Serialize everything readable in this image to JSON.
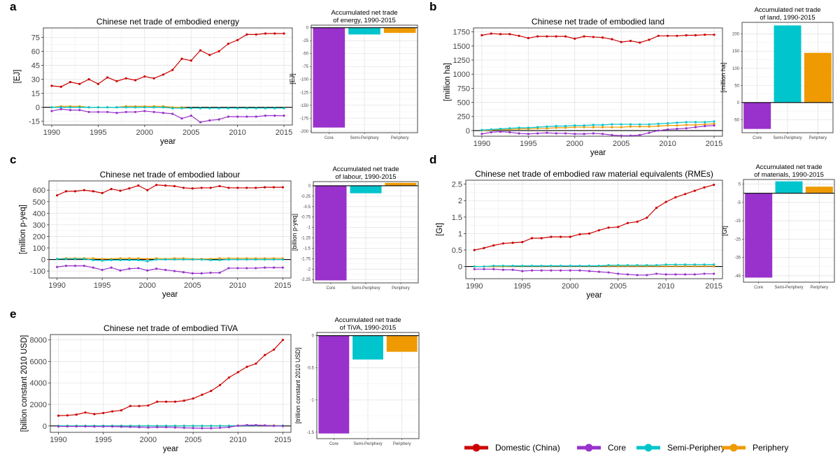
{
  "legend": [
    {
      "key": "domestic",
      "label": "Domestic (China)",
      "color": "#cc0000"
    },
    {
      "key": "core",
      "label": "Core",
      "color": "#9932cc"
    },
    {
      "key": "semi",
      "label": "Semi-Periphery",
      "color": "#00c5cd"
    },
    {
      "key": "peri",
      "label": "Periphery",
      "color": "#ee9a00"
    }
  ],
  "chart_data": [
    {
      "panel": "a",
      "type": "line",
      "title": "Chinese net trade of embodied energy",
      "xlabel": "year",
      "ylabel": "[EJ]",
      "xlim": [
        1989.1,
        2015.9
      ],
      "ylim": [
        -19,
        85
      ],
      "xticks": [
        1990,
        1995,
        2000,
        2005,
        2010,
        2015
      ],
      "yticks": [
        -15,
        0,
        15,
        30,
        45,
        60,
        75
      ],
      "x": [
        1990,
        1991,
        1992,
        1993,
        1994,
        1995,
        1996,
        1997,
        1998,
        1999,
        2000,
        2001,
        2002,
        2003,
        2004,
        2005,
        2006,
        2007,
        2008,
        2009,
        2010,
        2011,
        2012,
        2013,
        2014,
        2015
      ],
      "series": [
        {
          "key": "domestic",
          "values": [
            23,
            22,
            27,
            25,
            30,
            25,
            32,
            28,
            31,
            29,
            33,
            31,
            35,
            40,
            52,
            50,
            61,
            56,
            60,
            68,
            72,
            78,
            78,
            79,
            79,
            79
          ]
        },
        {
          "key": "core",
          "values": [
            -4,
            -2,
            -3,
            -3,
            -5,
            -5,
            -5,
            -6,
            -5,
            -5,
            -4,
            -5,
            -6,
            -7,
            -12,
            -9,
            -16,
            -14,
            -13,
            -10,
            -10,
            -10,
            -10,
            -9,
            -9,
            -9
          ]
        },
        {
          "key": "semi",
          "values": [
            0,
            0,
            0,
            0,
            0,
            0,
            0,
            0,
            0,
            0,
            0,
            0,
            0,
            -1,
            -1,
            -1,
            -1,
            -1,
            -1,
            -1,
            -1,
            -1,
            -1,
            -1,
            -1,
            -1
          ]
        },
        {
          "key": "peri",
          "values": [
            0,
            1,
            1,
            1,
            0,
            0,
            0,
            0,
            1,
            1,
            1,
            1,
            1,
            0,
            0,
            -1,
            -1,
            -1,
            -1,
            -1,
            -1,
            -1,
            -1,
            -1,
            -1,
            -1
          ]
        }
      ]
    },
    {
      "panel": "a-acc",
      "type": "bar",
      "title": "Accumulated net trade of energy, 1990-2015",
      "ylabel": "[EJ]",
      "categories": [
        "Core",
        "Semi-Periphery",
        "Periphery"
      ],
      "values": [
        -193,
        -13,
        -10
      ],
      "ylim": [
        -203,
        5
      ],
      "yticks": [
        -200,
        -175,
        -150,
        -125,
        -100,
        -75,
        -50,
        -25,
        0
      ]
    },
    {
      "panel": "b",
      "type": "line",
      "title": "Chinese net trade of embodied land",
      "xlabel": "year",
      "ylabel": "[million ha]",
      "xlim": [
        1989.1,
        2015.9
      ],
      "ylim": [
        -100,
        1820
      ],
      "xticks": [
        1990,
        1995,
        2000,
        2005,
        2010,
        2015
      ],
      "yticks": [
        0,
        250,
        500,
        750,
        1000,
        1250,
        1500,
        1750
      ],
      "x": [
        1990,
        1991,
        1992,
        1993,
        1994,
        1995,
        1996,
        1997,
        1998,
        1999,
        2000,
        2001,
        2002,
        2003,
        2004,
        2005,
        2006,
        2007,
        2008,
        2009,
        2010,
        2011,
        2012,
        2013,
        2014,
        2015
      ],
      "series": [
        {
          "key": "domestic",
          "values": [
            1690,
            1720,
            1710,
            1710,
            1680,
            1640,
            1670,
            1670,
            1670,
            1670,
            1630,
            1670,
            1660,
            1650,
            1620,
            1570,
            1590,
            1560,
            1610,
            1680,
            1680,
            1680,
            1690,
            1690,
            1700,
            1700
          ]
        },
        {
          "key": "core",
          "values": [
            -60,
            -30,
            -20,
            -30,
            -50,
            -60,
            -50,
            -40,
            -50,
            -50,
            -60,
            -60,
            -50,
            -60,
            -80,
            -90,
            -90,
            -80,
            -40,
            0,
            20,
            30,
            40,
            60,
            80,
            90
          ]
        },
        {
          "key": "semi",
          "values": [
            10,
            20,
            30,
            40,
            50,
            50,
            60,
            70,
            80,
            80,
            90,
            90,
            100,
            100,
            110,
            110,
            110,
            110,
            110,
            120,
            130,
            140,
            150,
            150,
            150,
            160
          ]
        },
        {
          "key": "peri",
          "values": [
            0,
            10,
            20,
            20,
            30,
            30,
            40,
            40,
            50,
            50,
            60,
            60,
            60,
            60,
            60,
            60,
            70,
            70,
            70,
            80,
            90,
            90,
            100,
            100,
            110,
            120
          ]
        }
      ]
    },
    {
      "panel": "b-acc",
      "type": "bar",
      "title": "Accumulated net trade of land, 1990-2015",
      "ylabel": "[million ha]",
      "categories": [
        "Core",
        "Semi-Periphery",
        "Periphery"
      ],
      "values": [
        -77,
        225,
        145
      ],
      "ylim": [
        -88,
        234
      ],
      "yticks": [
        -50,
        0,
        50,
        100,
        150,
        200
      ]
    },
    {
      "panel": "c",
      "type": "line",
      "title": "Chinese net trade of embodied labour",
      "xlabel": "year",
      "ylabel": "[million p-yeq]",
      "xlim": [
        1989.1,
        2015.9
      ],
      "ylim": [
        -160,
        680
      ],
      "xticks": [
        1990,
        1995,
        2000,
        2005,
        2010,
        2015
      ],
      "yticks": [
        -100,
        0,
        100,
        200,
        300,
        400,
        500,
        600
      ],
      "x": [
        1990,
        1991,
        1992,
        1993,
        1994,
        1995,
        1996,
        1997,
        1998,
        1999,
        2000,
        2001,
        2002,
        2003,
        2004,
        2005,
        2006,
        2007,
        2008,
        2009,
        2010,
        2011,
        2012,
        2013,
        2014,
        2015
      ],
      "series": [
        {
          "key": "domestic",
          "values": [
            555,
            590,
            590,
            600,
            590,
            575,
            610,
            595,
            615,
            640,
            600,
            645,
            640,
            635,
            620,
            615,
            620,
            620,
            635,
            620,
            620,
            620,
            620,
            625,
            625,
            625
          ]
        },
        {
          "key": "core",
          "values": [
            -65,
            -55,
            -55,
            -55,
            -70,
            -90,
            -70,
            -95,
            -80,
            -75,
            -95,
            -80,
            -90,
            -100,
            -110,
            -120,
            -120,
            -115,
            -115,
            -75,
            -75,
            -75,
            -75,
            -70,
            -70,
            -70
          ]
        },
        {
          "key": "semi",
          "values": [
            5,
            5,
            5,
            5,
            -5,
            -10,
            -5,
            -5,
            -5,
            -5,
            -15,
            0,
            0,
            0,
            0,
            0,
            0,
            -5,
            -5,
            0,
            0,
            0,
            0,
            0,
            0,
            0
          ]
        },
        {
          "key": "peri",
          "values": [
            5,
            10,
            10,
            10,
            10,
            5,
            5,
            10,
            10,
            10,
            5,
            10,
            5,
            10,
            10,
            5,
            5,
            5,
            10,
            10,
            10,
            10,
            10,
            10,
            10,
            10
          ]
        }
      ]
    },
    {
      "panel": "c-acc",
      "type": "bar",
      "title": "Accumulated net trade of labour, 1990-2015",
      "ylabel": "[billion p-yeq]",
      "categories": [
        "Core",
        "Semi-Periphery",
        "Periphery"
      ],
      "values": [
        -2.27,
        -0.18,
        0.07
      ],
      "ylim": [
        -2.33,
        0.1
      ],
      "yticks": [
        -2.25,
        -2,
        -1.75,
        -1.5,
        -1.25,
        -1,
        -0.75,
        -0.5,
        -0.25,
        0
      ]
    },
    {
      "panel": "d",
      "type": "line",
      "title": "Chinese net trade of embodied raw material equivalents (RMEs)",
      "xlabel": "year",
      "ylabel": "[Gt]",
      "xlim": [
        1989.1,
        2015.9
      ],
      "ylim": [
        -0.37,
        2.62
      ],
      "xticks": [
        1990,
        1995,
        2000,
        2005,
        2010,
        2015
      ],
      "yticks": [
        0,
        0.5,
        1,
        1.5,
        2,
        2.5
      ],
      "x": [
        1990,
        1991,
        1992,
        1993,
        1994,
        1995,
        1996,
        1997,
        1998,
        1999,
        2000,
        2001,
        2002,
        2003,
        2004,
        2005,
        2006,
        2007,
        2008,
        2009,
        2010,
        2011,
        2012,
        2013,
        2014,
        2015
      ],
      "series": [
        {
          "key": "domestic",
          "values": [
            0.5,
            0.56,
            0.64,
            0.7,
            0.72,
            0.74,
            0.86,
            0.86,
            0.9,
            0.9,
            0.9,
            0.98,
            1.0,
            1.1,
            1.18,
            1.2,
            1.32,
            1.36,
            1.48,
            1.78,
            1.96,
            2.1,
            2.2,
            2.3,
            2.4,
            2.48
          ]
        },
        {
          "key": "core",
          "values": [
            -0.08,
            -0.08,
            -0.08,
            -0.1,
            -0.1,
            -0.14,
            -0.12,
            -0.12,
            -0.12,
            -0.12,
            -0.12,
            -0.12,
            -0.14,
            -0.16,
            -0.18,
            -0.22,
            -0.24,
            -0.26,
            -0.26,
            -0.22,
            -0.24,
            -0.24,
            -0.24,
            -0.24,
            -0.22,
            -0.22
          ]
        },
        {
          "key": "semi",
          "values": [
            0,
            0,
            0.02,
            0.02,
            0.02,
            0.02,
            0.02,
            0.02,
            0.02,
            0.02,
            0.02,
            0.02,
            0.02,
            0.02,
            0.04,
            0.04,
            0.04,
            0.04,
            0.04,
            0.04,
            0.06,
            0.06,
            0.06,
            0.06,
            0.06,
            0.06
          ]
        },
        {
          "key": "peri",
          "values": [
            0,
            0,
            0,
            0,
            0.01,
            0.01,
            0.01,
            0.01,
            0.01,
            0.01,
            0.01,
            0.01,
            0.01,
            0.01,
            0.01,
            0.01,
            0.01,
            0.01,
            0.01,
            0.01,
            0.01,
            0.01,
            0.01,
            0.01,
            0.01,
            0.01
          ]
        }
      ]
    },
    {
      "panel": "d-acc",
      "type": "bar",
      "title": "Accumulated net trade of materials, 1990-2015",
      "ylabel": "[Gt]",
      "categories": [
        "Core",
        "Semi-Periphery",
        "Periphery"
      ],
      "values": [
        -46,
        6.5,
        3.6
      ],
      "ylim": [
        -48.5,
        7.5
      ],
      "yticks": [
        -45,
        -35,
        -25,
        -15,
        -5,
        5
      ]
    },
    {
      "panel": "e",
      "type": "line",
      "title": "Chinese net trade of embodied TiVA",
      "xlabel": "year",
      "ylabel": "[billion constant 2010 USD]",
      "xlim": [
        1989.1,
        2015.9
      ],
      "ylim": [
        -600,
        8500
      ],
      "xticks": [
        1990,
        1995,
        2000,
        2005,
        2010,
        2015
      ],
      "yticks": [
        0,
        2000,
        4000,
        6000,
        8000
      ],
      "x": [
        1990,
        1991,
        1992,
        1993,
        1994,
        1995,
        1996,
        1997,
        1998,
        1999,
        2000,
        2001,
        2002,
        2003,
        2004,
        2005,
        2006,
        2007,
        2008,
        2009,
        2010,
        2011,
        2012,
        2013,
        2014,
        2015
      ],
      "series": [
        {
          "key": "domestic",
          "values": [
            950,
            980,
            1050,
            1250,
            1100,
            1200,
            1350,
            1450,
            1850,
            1850,
            1900,
            2250,
            2250,
            2250,
            2350,
            2550,
            2900,
            3250,
            3800,
            4500,
            5000,
            5500,
            5800,
            6600,
            7100,
            8000
          ]
        },
        {
          "key": "core",
          "values": [
            -50,
            -50,
            -50,
            -50,
            -60,
            -60,
            -60,
            -80,
            -100,
            -120,
            -150,
            -120,
            -120,
            -150,
            -180,
            -200,
            -220,
            -220,
            -180,
            -120,
            20,
            80,
            80,
            40,
            0,
            -20
          ]
        },
        {
          "key": "semi",
          "values": [
            0,
            0,
            0,
            0,
            0,
            0,
            0,
            0,
            0,
            0,
            0,
            0,
            0,
            0,
            0,
            0,
            0,
            0,
            0,
            0,
            20,
            40,
            60,
            40,
            20,
            20
          ]
        },
        {
          "key": "peri",
          "values": [
            0,
            10,
            10,
            10,
            10,
            10,
            10,
            10,
            10,
            10,
            10,
            10,
            10,
            10,
            10,
            10,
            10,
            10,
            10,
            10,
            30,
            50,
            60,
            50,
            40,
            30
          ]
        }
      ]
    },
    {
      "panel": "e-acc",
      "type": "bar",
      "title": "Accumulated net trade of TiVA, 1990-2015",
      "ylabel": "[trillion constant 2010 USD]",
      "categories": [
        "Core",
        "Semi-Periphery",
        "Periphery"
      ],
      "values": [
        -1.52,
        -0.37,
        -0.25
      ],
      "ylim": [
        -1.6,
        0.05
      ],
      "yticks": [
        -1.5,
        -1,
        -0.5,
        0
      ]
    }
  ]
}
